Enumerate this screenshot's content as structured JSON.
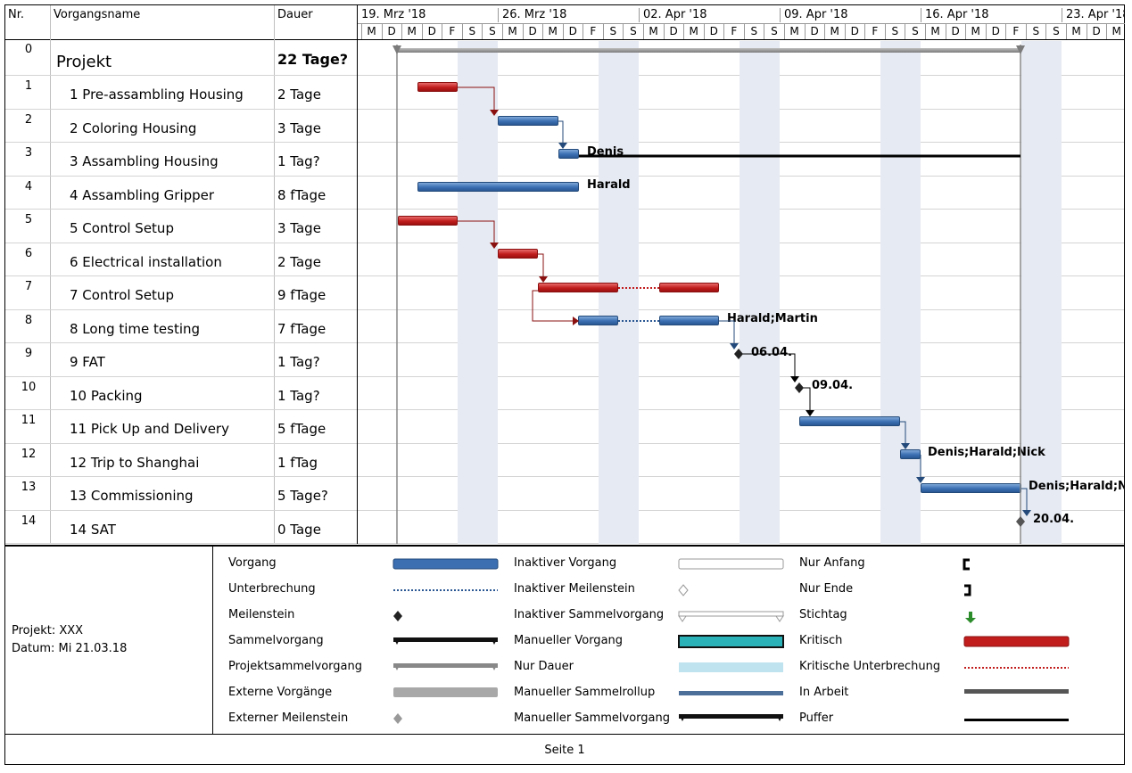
{
  "table": {
    "headers": {
      "nr": "Nr.",
      "name": "Vorgangsname",
      "duration": "Dauer"
    },
    "rows": [
      {
        "nr": "0",
        "name": "Projekt",
        "duration": "22 Tage?"
      },
      {
        "nr": "1",
        "name": "1 Pre-assambling Housing",
        "duration": "2 Tage"
      },
      {
        "nr": "2",
        "name": "2 Coloring Housing",
        "duration": "3 Tage"
      },
      {
        "nr": "3",
        "name": "3 Assambling Housing",
        "duration": "1 Tag?"
      },
      {
        "nr": "4",
        "name": "4 Assambling Gripper",
        "duration": "8 fTage"
      },
      {
        "nr": "5",
        "name": "5 Control Setup",
        "duration": "3 Tage"
      },
      {
        "nr": "6",
        "name": "6 Electrical installation",
        "duration": "2 Tage"
      },
      {
        "nr": "7",
        "name": "7 Control Setup",
        "duration": "9 fTage"
      },
      {
        "nr": "8",
        "name": "8 Long time testing",
        "duration": "7 fTage"
      },
      {
        "nr": "9",
        "name": "9 FAT",
        "duration": "1 Tag?"
      },
      {
        "nr": "10",
        "name": "10 Packing",
        "duration": "1 Tag?"
      },
      {
        "nr": "11",
        "name": "11 Pick Up and Delivery",
        "duration": "5 fTage"
      },
      {
        "nr": "12",
        "name": "12 Trip to Shanghai",
        "duration": "1 fTag"
      },
      {
        "nr": "13",
        "name": "13 Commissioning",
        "duration": "5 Tage?"
      },
      {
        "nr": "14",
        "name": "14 SAT",
        "duration": "0 Tage"
      }
    ]
  },
  "timescale": {
    "weeks": [
      "19. Mrz '18",
      "26. Mrz '18",
      "02. Apr '18",
      "09. Apr '18",
      "16. Apr '18",
      "23. Apr '18"
    ],
    "days": [
      "M",
      "D",
      "M",
      "D",
      "F",
      "S",
      "S"
    ]
  },
  "bar_labels": {
    "task3": "Denis",
    "task4": "Harald",
    "task8": "Harald;Martin",
    "task9": "06.04.",
    "task10": "09.04.",
    "task12": "Denis;Harald;Nick",
    "task13": "Denis;Harald;Nick",
    "task14": "20.04."
  },
  "legend": {
    "project_label": "Projekt: XXX",
    "date_label": "Datum: Mi 21.03.18",
    "col1": [
      "Vorgang",
      "Unterbrechung",
      "Meilenstein",
      "Sammelvorgang",
      "Projektsammelvorgang",
      "Externe Vorgänge",
      "Externer Meilenstein"
    ],
    "col2": [
      "Inaktiver Vorgang",
      "Inaktiver Meilenstein",
      "Inaktiver Sammelvorgang",
      "Manueller Vorgang",
      "Nur Dauer",
      "Manueller Sammelrollup",
      "Manueller Sammelvorgang"
    ],
    "col3": [
      "Nur Anfang",
      "Nur Ende",
      "Stichtag",
      "Kritisch",
      "Kritische Unterbrechung",
      "In Arbeit",
      "Puffer"
    ]
  },
  "colors": {
    "critical": "#c11d1d",
    "normal": "#3b6fb2",
    "weekend": "#e6eaf2"
  },
  "footer": {
    "page": "Seite 1"
  }
}
